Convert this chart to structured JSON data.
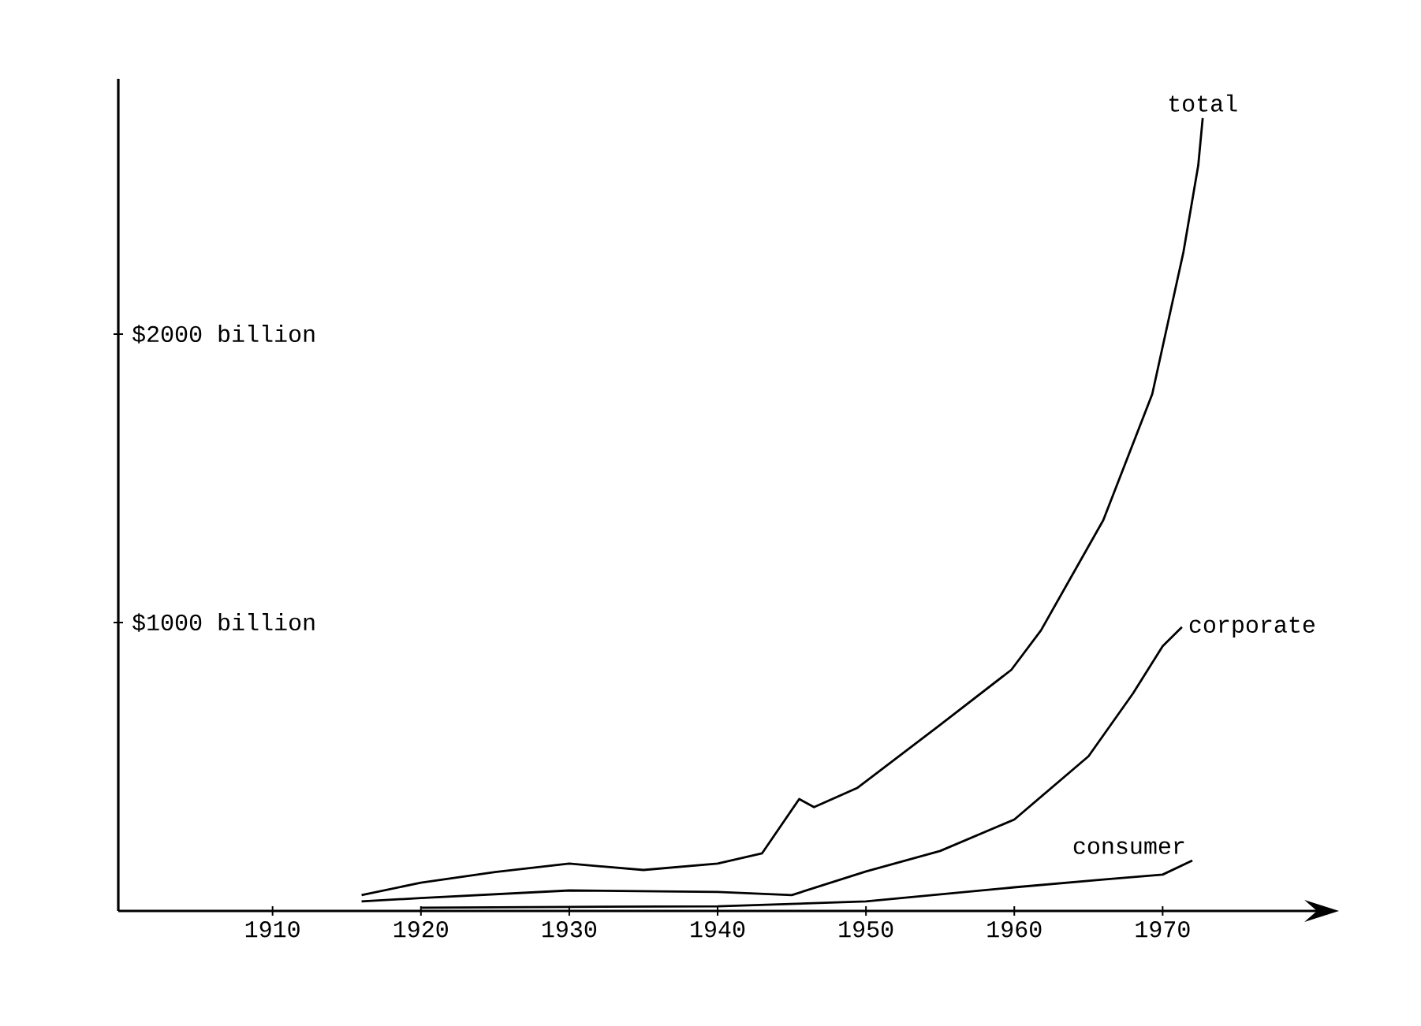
{
  "chart_data": {
    "type": "line",
    "xlim": [
      1899.6,
      1980.4
    ],
    "ylim": [
      0,
      2885
    ],
    "xticks": [
      1910,
      1920,
      1930,
      1940,
      1950,
      1960,
      1970
    ],
    "yticks": [
      {
        "value": 1000,
        "label": "$1000 billion"
      },
      {
        "value": 2000,
        "label": "$2000 billion"
      }
    ],
    "series": [
      {
        "name": "total",
        "color": "#000000",
        "x": [
          1916,
          1920,
          1925,
          1930,
          1935,
          1940,
          1943,
          1945.5,
          1946.5,
          1949.4,
          1955,
          1959.8,
          1961.8,
          1966,
          1969.3,
          1971.4,
          1972.4,
          1972.7
        ],
        "values": [
          55,
          98,
          135,
          164,
          142,
          164,
          200,
          388,
          360,
          426,
          645,
          836,
          973,
          1355,
          1792,
          2284,
          2585,
          2749
        ]
      },
      {
        "name": "corporate",
        "color": "#000000",
        "x": [
          1916,
          1920,
          1930,
          1940,
          1945,
          1950,
          1955,
          1960,
          1965,
          1968,
          1970,
          1971.3
        ],
        "values": [
          33,
          45,
          71,
          66,
          55,
          137,
          208,
          317,
          536,
          754,
          918,
          984
        ]
      },
      {
        "name": "consumer",
        "color": "#000000",
        "x": [
          1920,
          1930,
          1940,
          1950,
          1960,
          1966,
          1970,
          1972
        ],
        "values": [
          11,
          14,
          16,
          33,
          82,
          109,
          126,
          175
        ]
      }
    ]
  }
}
